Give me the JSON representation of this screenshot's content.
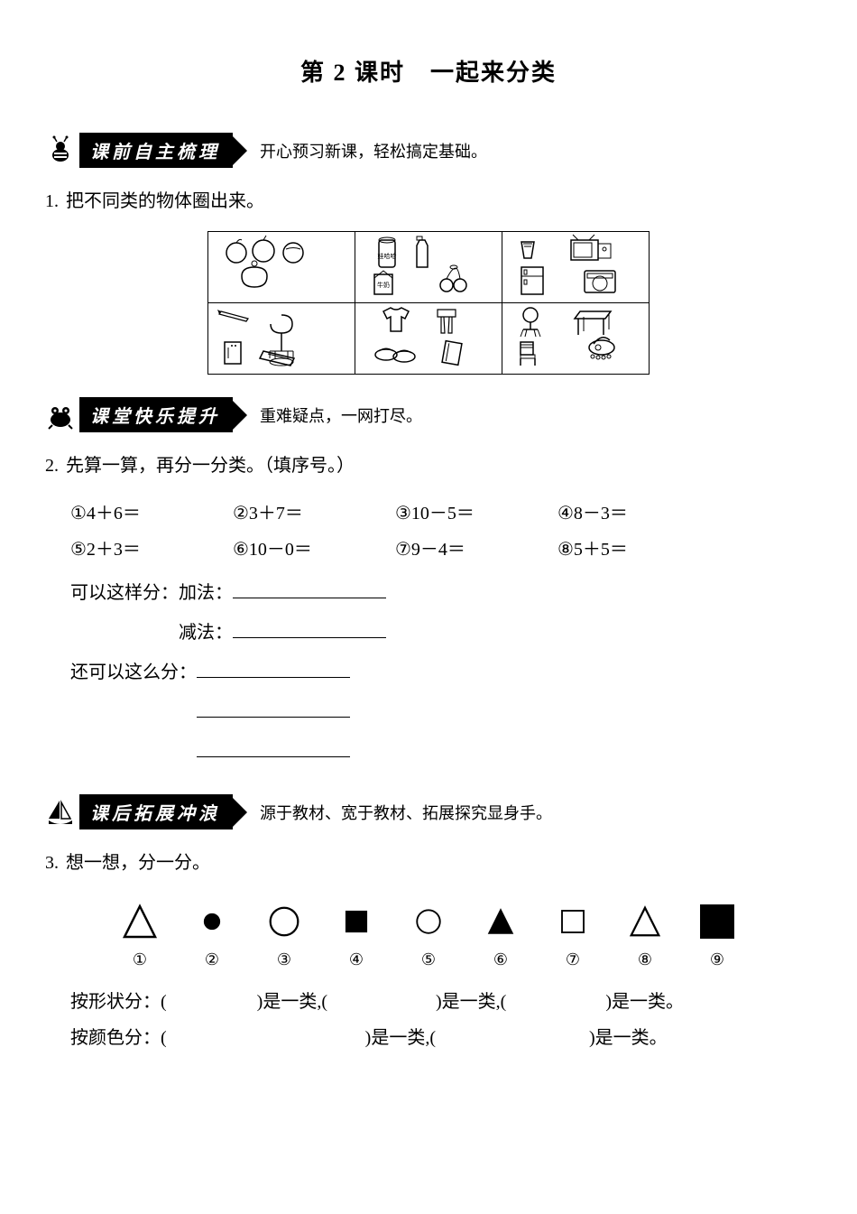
{
  "title": "第 2 课时　一起来分类",
  "sections": [
    {
      "mascot": "bee",
      "banner": "课前自主梳理",
      "subtitle": "开心预习新课，轻松搞定基础。"
    },
    {
      "mascot": "frog",
      "banner": "课堂快乐提升",
      "subtitle": "重难疑点，一网打尽。"
    },
    {
      "mascot": "sail",
      "banner": "课后拓展冲浪",
      "subtitle": "源于教材、宽于教材、拓展探究显身手。"
    }
  ],
  "q1": {
    "num": "1.",
    "text": "把不同类的物体圈出来。"
  },
  "q2": {
    "num": "2.",
    "text": "先算一算，再分一分类。（填序号。）",
    "eq": {
      "e1": "①4＋6＝",
      "e2": "②3＋7＝",
      "e3": "③10－5＝",
      "e4": "④8－3＝",
      "e5": "⑤2＋3＝",
      "e6": "⑥10－0＝",
      "e7": "⑦9－4＝",
      "e8": "⑧5＋5＝"
    },
    "lineA_label": "可以这样分：加法：",
    "lineB_label": "减法：",
    "lineC_label": "还可以这么分："
  },
  "q3": {
    "num": "3.",
    "text": "想一想，分一分。",
    "labels": [
      "①",
      "②",
      "③",
      "④",
      "⑤",
      "⑥",
      "⑦",
      "⑧",
      "⑨"
    ],
    "shapeRow_pre": "按形状分：(",
    "shapeRow_mid1": ")是一类,(",
    "shapeRow_mid2": ")是一类,(",
    "shapeRow_end": ")是一类。",
    "colorRow_pre": "按颜色分：(",
    "colorRow_mid": ")是一类,(",
    "colorRow_end": ")是一类。"
  },
  "shapes": [
    {
      "type": "triangle",
      "fill": "none",
      "size": 40
    },
    {
      "type": "circle",
      "fill": "#000",
      "size": 20
    },
    {
      "type": "circle",
      "fill": "none",
      "size": 36
    },
    {
      "type": "square",
      "fill": "#000",
      "size": 28
    },
    {
      "type": "circle",
      "fill": "none",
      "size": 30
    },
    {
      "type": "triangle",
      "fill": "#000",
      "size": 30
    },
    {
      "type": "square",
      "fill": "none",
      "size": 30
    },
    {
      "type": "triangle",
      "fill": "none",
      "size": 36
    },
    {
      "type": "square",
      "fill": "#000",
      "size": 44
    }
  ],
  "colors": {
    "stroke": "#000000",
    "fill_black": "#000000",
    "fill_none": "none",
    "background": "#ffffff"
  }
}
